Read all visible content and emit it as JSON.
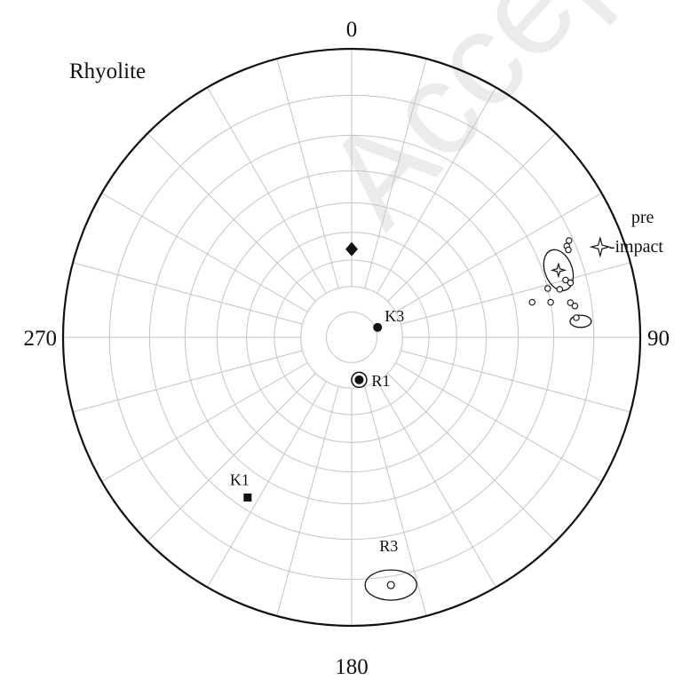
{
  "title": "Rhyolite",
  "axis_labels": {
    "north": "0",
    "east": "90",
    "south": "180",
    "west": "270"
  },
  "watermark": "Accepted",
  "colors": {
    "ink": "#111111",
    "grid": "#c4c4c4",
    "watermark": "#ebebeb"
  },
  "grid": {
    "azimuth_step_deg": 15,
    "inclination_step_deg": 10,
    "center_hole_inclination_deg": 70
  },
  "points": [
    {
      "id": "pre-impact",
      "label_line1": "pre",
      "label_line2": "-impact",
      "dec": 70,
      "inc": 5,
      "symbol": "star-open",
      "label_side": "right"
    },
    {
      "id": "star",
      "label": "",
      "dec": 72,
      "inc": 16,
      "symbol": "star-open-small",
      "ellipse": {
        "a_deg": 7,
        "b_deg": 4.5,
        "rot": 70
      }
    },
    {
      "id": "K3",
      "label": "K3",
      "dec": 69,
      "inc": 79,
      "symbol": "dot"
    },
    {
      "id": "R1",
      "label": "R1",
      "dec": 170,
      "inc": 73,
      "symbol": "dot-ring"
    },
    {
      "id": "K1",
      "label": "K1",
      "dec": 213,
      "inc": 23,
      "symbol": "square"
    },
    {
      "id": "R3",
      "label": "R3",
      "dec": 171,
      "inc": 8,
      "symbol": "circle-open",
      "ellipse": {
        "a_deg": 8.5,
        "b_deg": 5,
        "rot": 0
      }
    },
    {
      "id": "diamond",
      "label": "",
      "dec": 0,
      "inc": 56,
      "symbol": "diamond"
    }
  ],
  "small_circles": [
    {
      "dec": 66,
      "inc": 11
    },
    {
      "dec": 67,
      "inc": 12
    },
    {
      "dec": 68,
      "inc": 12
    },
    {
      "dec": 75,
      "inc": 15
    },
    {
      "dec": 76,
      "inc": 14
    },
    {
      "dec": 77,
      "inc": 17
    },
    {
      "dec": 76,
      "inc": 20
    },
    {
      "dec": 79,
      "inc": 25
    },
    {
      "dec": 80,
      "inc": 20
    },
    {
      "dec": 81,
      "inc": 15
    },
    {
      "dec": 82,
      "inc": 14
    },
    {
      "dec": 85,
      "inc": 14
    }
  ],
  "small_ellipses": [
    {
      "dec": 86,
      "inc": 13,
      "a_deg": 3.5,
      "b_deg": 2,
      "rot": 0
    }
  ]
}
